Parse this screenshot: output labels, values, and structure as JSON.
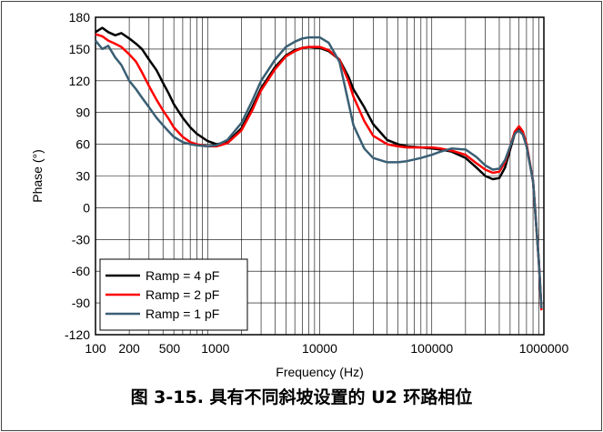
{
  "caption": "图 3-15. 具有不同斜坡设置的 U2 环路相位",
  "chart_data": {
    "type": "line",
    "xscale": "log",
    "xlabel": "Frequency (Hz)",
    "ylabel": "Phase (°)",
    "xlim": [
      100,
      1000000
    ],
    "ylim": [
      -120,
      180
    ],
    "x_ticks": [
      {
        "value": 100,
        "label": "100"
      },
      {
        "value": 200,
        "label": "200"
      },
      {
        "value": 500,
        "label": "500"
      },
      {
        "value": 1000,
        "label": "1000"
      },
      {
        "value": 10000,
        "label": "10000"
      },
      {
        "value": 100000,
        "label": "100000"
      },
      {
        "value": 1000000,
        "label": "1000000"
      }
    ],
    "y_ticks": [
      180,
      150,
      120,
      90,
      60,
      30,
      0,
      -30,
      -60,
      -90,
      -120
    ],
    "grid": true,
    "legend_position": "bottom-left",
    "series": [
      {
        "name": "Ramp = 4 pF",
        "color": "#000000",
        "x": [
          100,
          115,
          130,
          150,
          170,
          200,
          230,
          260,
          300,
          350,
          400,
          450,
          500,
          600,
          700,
          800,
          1000,
          1200,
          1500,
          2000,
          2500,
          3000,
          4000,
          5000,
          6000,
          7000,
          8000,
          10000,
          12000,
          15000,
          18000,
          20000,
          25000,
          30000,
          40000,
          50000,
          60000,
          80000,
          100000,
          120000,
          150000,
          200000,
          250000,
          300000,
          350000,
          400000,
          450000,
          500000,
          550000,
          600000,
          650000,
          700000,
          800000,
          900000,
          950000
        ],
        "y": [
          166,
          170,
          166,
          163,
          165,
          160,
          155,
          150,
          140,
          130,
          118,
          108,
          98,
          85,
          76,
          70,
          63,
          60,
          62,
          75,
          95,
          113,
          133,
          144,
          149,
          151,
          152,
          151,
          148,
          140,
          124,
          112,
          95,
          79,
          64,
          60,
          58,
          57,
          56,
          55,
          53,
          47,
          38,
          30,
          27,
          28,
          38,
          55,
          70,
          74,
          70,
          60,
          25,
          -50,
          -96
        ]
      },
      {
        "name": "Ramp = 2 pF",
        "color": "#ff0000",
        "x": [
          100,
          115,
          130,
          150,
          170,
          200,
          230,
          260,
          300,
          350,
          400,
          450,
          500,
          600,
          700,
          800,
          1000,
          1200,
          1500,
          2000,
          2500,
          3000,
          4000,
          5000,
          6000,
          7000,
          8000,
          10000,
          12000,
          15000,
          18000,
          20000,
          25000,
          30000,
          40000,
          50000,
          60000,
          80000,
          100000,
          120000,
          150000,
          200000,
          250000,
          300000,
          350000,
          400000,
          450000,
          500000,
          550000,
          600000,
          650000,
          700000,
          800000,
          900000,
          950000
        ],
        "y": [
          164,
          162,
          158,
          155,
          152,
          145,
          138,
          128,
          115,
          102,
          92,
          84,
          76,
          67,
          62,
          60,
          58,
          58,
          61,
          73,
          92,
          111,
          131,
          143,
          148,
          151,
          152,
          152,
          149,
          140,
          120,
          105,
          82,
          68,
          60,
          58,
          57,
          57,
          57,
          56,
          54,
          50,
          42,
          36,
          33,
          34,
          43,
          58,
          72,
          77,
          72,
          60,
          25,
          -50,
          -97
        ]
      },
      {
        "name": "Ramp = 1 pF",
        "color": "#3a5f74",
        "x": [
          100,
          115,
          130,
          150,
          170,
          200,
          230,
          260,
          300,
          350,
          400,
          450,
          500,
          600,
          700,
          800,
          1000,
          1200,
          1500,
          2000,
          2500,
          3000,
          4000,
          5000,
          6000,
          7000,
          8000,
          10000,
          12000,
          15000,
          18000,
          20000,
          25000,
          30000,
          40000,
          50000,
          60000,
          80000,
          100000,
          120000,
          150000,
          200000,
          250000,
          300000,
          350000,
          400000,
          450000,
          500000,
          550000,
          600000,
          650000,
          700000,
          800000,
          900000,
          950000
        ],
        "y": [
          158,
          150,
          153,
          142,
          135,
          120,
          112,
          104,
          95,
          85,
          78,
          72,
          67,
          62,
          60,
          59,
          58,
          59,
          64,
          80,
          101,
          120,
          140,
          152,
          157,
          160,
          161,
          161,
          156,
          138,
          100,
          78,
          56,
          47,
          43,
          43,
          44,
          47,
          50,
          53,
          56,
          55,
          48,
          40,
          36,
          37,
          45,
          58,
          70,
          73,
          69,
          58,
          25,
          -50,
          -95
        ]
      }
    ]
  }
}
